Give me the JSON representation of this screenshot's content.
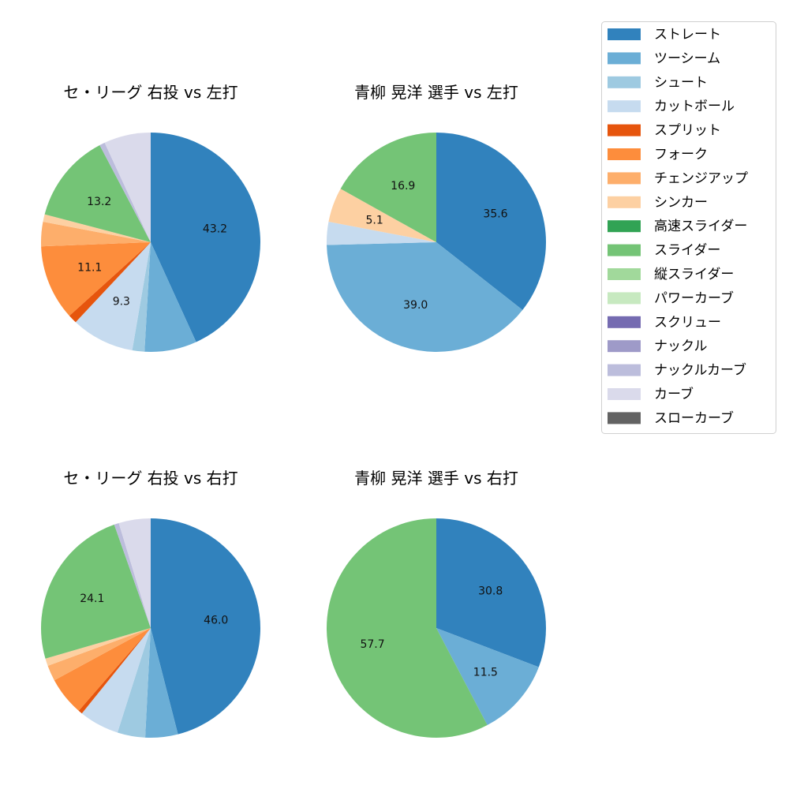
{
  "legend": {
    "position": "right",
    "entries": [
      {
        "name": "ストレート",
        "color": "#3182bd"
      },
      {
        "name": "ツーシーム",
        "color": "#6baed6"
      },
      {
        "name": "シュート",
        "color": "#9ecae1"
      },
      {
        "name": "カットボール",
        "color": "#c6dbef"
      },
      {
        "name": "スプリット",
        "color": "#e6550d"
      },
      {
        "name": "フォーク",
        "color": "#fd8d3c"
      },
      {
        "name": "チェンジアップ",
        "color": "#fdae6b"
      },
      {
        "name": "シンカー",
        "color": "#fdd0a2"
      },
      {
        "name": "高速スライダー",
        "color": "#31a354"
      },
      {
        "name": "スライダー",
        "color": "#74c476"
      },
      {
        "name": "縦スライダー",
        "color": "#a1d99b"
      },
      {
        "name": "パワーカーブ",
        "color": "#c7e9c0"
      },
      {
        "name": "スクリュー",
        "color": "#756bb1"
      },
      {
        "name": "ナックル",
        "color": "#9e9ac8"
      },
      {
        "name": "ナックルカーブ",
        "color": "#bcbddc"
      },
      {
        "name": "カーブ",
        "color": "#dadaeb"
      },
      {
        "name": "スローカーブ",
        "color": "#636363"
      }
    ]
  },
  "chart_data": [
    {
      "type": "pie",
      "title": "セ・リーグ 右投 vs 左打",
      "categories": [
        "ストレート",
        "ツーシーム",
        "シュート",
        "カットボール",
        "スプリット",
        "フォーク",
        "チェンジアップ",
        "シンカー",
        "スライダー",
        "ナックルカーブ",
        "カーブ"
      ],
      "values": [
        43.2,
        7.7,
        1.8,
        9.3,
        1.3,
        11.1,
        3.6,
        1.1,
        13.2,
        0.8,
        6.9
      ],
      "labels": [
        "43.2",
        "",
        "",
        "9.3",
        "",
        "11.1",
        "",
        "",
        "13.2",
        "",
        ""
      ]
    },
    {
      "type": "pie",
      "title": "青柳 晃洋 選手 vs 左打",
      "categories": [
        "ストレート",
        "ツーシーム",
        "カットボール",
        "シンカー",
        "スライダー"
      ],
      "values": [
        35.6,
        39.0,
        3.4,
        5.1,
        16.9
      ],
      "labels": [
        "35.6",
        "39.0",
        "",
        "5.1",
        "16.9"
      ]
    },
    {
      "type": "pie",
      "title": "セ・リーグ 右投 vs 右打",
      "categories": [
        "ストレート",
        "ツーシーム",
        "シュート",
        "カットボール",
        "スプリット",
        "フォーク",
        "チェンジアップ",
        "シンカー",
        "スライダー",
        "ナックルカーブ",
        "カーブ"
      ],
      "values": [
        46.0,
        4.8,
        4.1,
        5.9,
        0.6,
        5.7,
        2.3,
        1.1,
        24.1,
        0.7,
        4.7
      ],
      "labels": [
        "46.0",
        "",
        "",
        "",
        "",
        "",
        "",
        "",
        "24.1",
        "",
        ""
      ]
    },
    {
      "type": "pie",
      "title": "青柳 晃洋 選手 vs 右打",
      "categories": [
        "ストレート",
        "ツーシーム",
        "スライダー"
      ],
      "values": [
        30.8,
        11.5,
        57.7
      ],
      "labels": [
        "30.8",
        "11.5",
        "57.7"
      ]
    }
  ]
}
